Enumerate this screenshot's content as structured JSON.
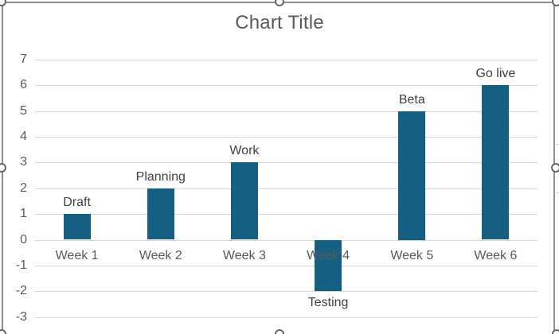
{
  "chart": {
    "selected": true,
    "selection_handles": [
      "top-left",
      "top-center",
      "top-right",
      "middle-left",
      "middle-right",
      "bottom-left",
      "bottom-center",
      "bottom-right"
    ]
  },
  "chart_data": {
    "type": "bar",
    "title": "Chart Title",
    "categories": [
      "Week 1",
      "Week 2",
      "Week 3",
      "Week 4",
      "Week 5",
      "Week 6"
    ],
    "values": [
      1,
      2,
      3,
      -2,
      5,
      6
    ],
    "data_labels": [
      "Draft",
      "Planning",
      "Work",
      "Testing",
      "Beta",
      "Go live"
    ],
    "yticks": [
      7,
      6,
      5,
      4,
      3,
      2,
      1,
      0,
      -1,
      -2,
      -3
    ],
    "ylim": [
      -3,
      7
    ],
    "xlabel": "",
    "ylabel": "",
    "grid": true,
    "legend": "none"
  },
  "colors": {
    "bar": "#156082",
    "gridline": "#D7D7D7",
    "axis_text": "#595959",
    "data_label_text": "#404040",
    "title_text": "#595959",
    "chart_border": "#8C8C8C",
    "handle_stroke": "#666666",
    "background": "#FFFFFF"
  }
}
